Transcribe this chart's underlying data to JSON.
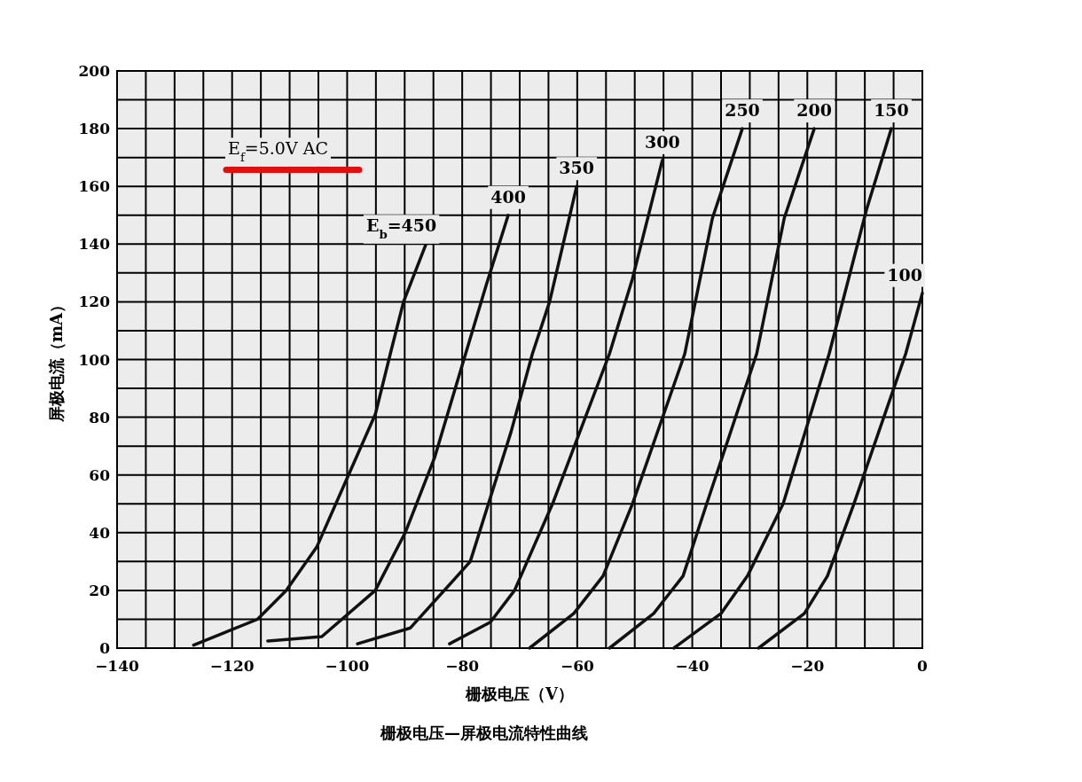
{
  "chart_data": {
    "type": "line",
    "title": "栅极电压—屏极电流特性曲线",
    "xlabel": "栅极电压（V）",
    "ylabel": "屏极电流（mA）",
    "annotations": [
      "E$_{f}$=5.0V AC"
    ],
    "xlim": [
      -140,
      0
    ],
    "ylim": [
      0,
      200
    ],
    "xticks": [
      -140,
      {
        "value": -135,
        "label": null
      },
      {
        "value": -130,
        "label": null
      },
      {
        "value": -125,
        "label": null
      },
      -120,
      {
        "value": -115,
        "label": null
      },
      {
        "value": -110,
        "label": null
      },
      {
        "value": -105,
        "label": null
      },
      -100,
      {
        "value": -95,
        "label": null
      },
      {
        "value": -90,
        "label": null
      },
      {
        "value": -85,
        "label": null
      },
      -80,
      {
        "value": -75,
        "label": null
      },
      {
        "value": -70,
        "label": null
      },
      {
        "value": -65,
        "label": null
      },
      -60,
      {
        "value": -55,
        "label": null
      },
      {
        "value": -50,
        "label": null
      },
      {
        "value": -45,
        "label": null
      },
      -40,
      {
        "value": -35,
        "label": null
      },
      {
        "value": -30,
        "label": null
      },
      {
        "value": -25,
        "label": null
      },
      -20,
      {
        "value": -15,
        "label": null
      },
      {
        "value": -10,
        "label": null
      },
      {
        "value": -5,
        "label": null
      },
      0
    ],
    "yticks": [
      0,
      {
        "value": 10,
        "label": null
      },
      20,
      {
        "value": 30,
        "label": null
      },
      40,
      {
        "value": 50,
        "label": null
      },
      60,
      {
        "value": 70,
        "label": null
      },
      80,
      {
        "value": 90,
        "label": null
      },
      100,
      {
        "value": 110,
        "label": null
      },
      120,
      {
        "value": 130,
        "label": null
      },
      140,
      {
        "value": 150,
        "label": null
      },
      160,
      {
        "value": 170,
        "label": null
      },
      180,
      {
        "value": 190,
        "label": null
      },
      200
    ],
    "grid": true,
    "marker": "none",
    "line_style": "solid",
    "series": [
      {
        "name": "E$_{b}$=450",
        "color": "#111111",
        "x": [
          -126.7,
          -115.6,
          -110.6,
          -105.3,
          -100.2,
          -95.1,
          -92.5,
          -90.2,
          -86.3
        ],
        "values": [
          1,
          10,
          20,
          35,
          58,
          81,
          102,
          120,
          140
        ]
      },
      {
        "name": "400",
        "color": "#111111",
        "x": [
          -113.8,
          -104.4,
          -95.1,
          -89.9,
          -84.8,
          -79.4,
          -75.8,
          -72
        ],
        "values": [
          2.5,
          4,
          20,
          40,
          66,
          102,
          126,
          150
        ]
      },
      {
        "name": "350",
        "color": "#111111",
        "x": [
          -98.2,
          -89,
          -78.6,
          -71.5,
          -67.8,
          -64.8,
          -60.1
        ],
        "values": [
          1.5,
          7,
          30,
          75,
          102,
          120,
          160
        ]
      },
      {
        "name": "300",
        "color": "#111111",
        "x": [
          -82.2,
          -75.1,
          -70.9,
          -64.3,
          -54.4,
          -50.4,
          -45.2
        ],
        "values": [
          1.5,
          9,
          20,
          50,
          102,
          128,
          169
        ]
      },
      {
        "name": "250",
        "color": "#111111",
        "x": [
          -68.3,
          -60.6,
          -55.5,
          -50.4,
          -41.3,
          -36.5,
          -31.3
        ],
        "values": [
          0,
          12,
          25,
          50,
          102,
          149,
          180
        ]
      },
      {
        "name": "200",
        "color": "#111111",
        "x": [
          -54.4,
          -46.7,
          -41.6,
          -37.5,
          -28.8,
          -24,
          -18.8
        ],
        "values": [
          0,
          12,
          25,
          50,
          102,
          149,
          180
        ]
      },
      {
        "name": "150",
        "color": "#111111",
        "x": [
          -43.2,
          -35,
          -30.4,
          -24.2,
          -16.2,
          -9.7,
          -5.4
        ],
        "values": [
          0,
          12,
          25,
          50,
          102,
          152,
          180
        ]
      },
      {
        "name": "100",
        "color": "#111111",
        "x": [
          -28.5,
          -20.5,
          -16.5,
          -11.9,
          -2.9,
          0
        ],
        "values": [
          0,
          12,
          25,
          50,
          102,
          123
        ]
      }
    ]
  }
}
